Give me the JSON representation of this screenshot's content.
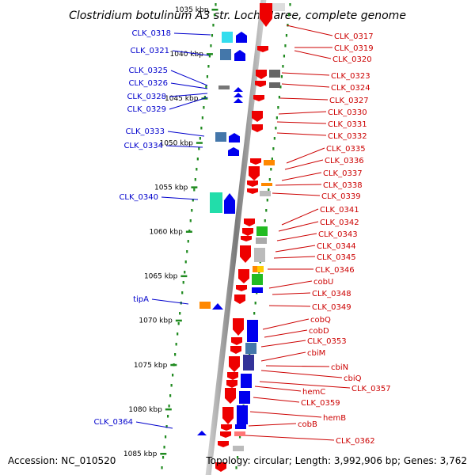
{
  "title": "Clostridium botulinum A3 str. Loch Maree, complete genome",
  "accession": "Accession: NC_010520",
  "topology": "Topology: circular; Length: 3,992,906 bp; Genes: 3,762",
  "colors": {
    "reverse_label": "#0000cc",
    "forward_label": "#cc0000",
    "backbone": "#8c8c8c",
    "tick": "#1f8a1f"
  },
  "scale_labels": [
    "1035 kbp",
    "1040 kbp",
    "1045 kbp",
    "1050 kbp",
    "1055 kbp",
    "1060 kbp",
    "1065 kbp",
    "1070 kbp",
    "1075 kbp",
    "1080 kbp",
    "1085 kbp"
  ],
  "reverse_genes": [
    "CLK_0318",
    "CLK_0321",
    "CLK_0325",
    "CLK_0326",
    "CLK_0328",
    "CLK_0329",
    "CLK_0333",
    "CLK_0334",
    "CLK_0340",
    "tipA",
    "CLK_0364"
  ],
  "forward_genes": [
    "CLK_0317",
    "CLK_0319",
    "CLK_0320",
    "CLK_0323",
    "CLK_0324",
    "CLK_0327",
    "CLK_0330",
    "CLK_0331",
    "CLK_0332",
    "CLK_0335",
    "CLK_0336",
    "CLK_0337",
    "CLK_0338",
    "CLK_0339",
    "CLK_0341",
    "CLK_0342",
    "CLK_0343",
    "CLK_0344",
    "CLK_0345",
    "CLK_0346",
    "cobU",
    "CLK_0348",
    "CLK_0349",
    "cobQ",
    "cobD",
    "CLK_0353",
    "cbiM",
    "cbiN",
    "cbiQ",
    "CLK_0357",
    "hemC",
    "CLK_0359",
    "hemB",
    "cobB",
    "CLK_0362"
  ]
}
